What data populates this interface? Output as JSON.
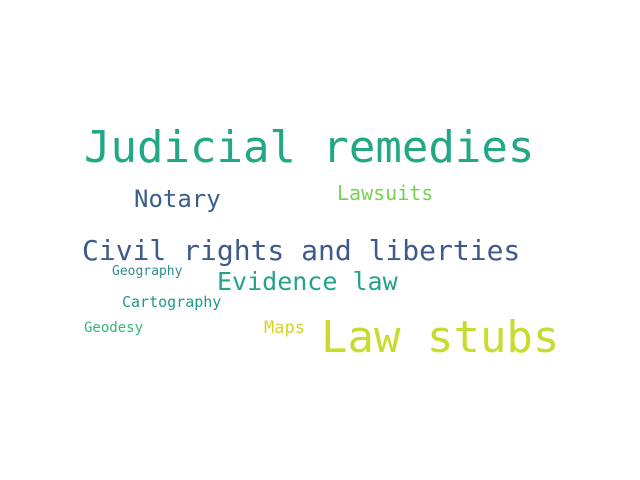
{
  "words": [
    {
      "text": "Judicial remedies",
      "color": "#22a884"
    },
    {
      "text": "Notary",
      "color": "#3b5e8c"
    },
    {
      "text": "Lawsuits",
      "color": "#7ad151"
    },
    {
      "text": "Civil rights and liberties",
      "color": "#3e5a8a"
    },
    {
      "text": "Geography",
      "color": "#2e8f8a"
    },
    {
      "text": "Evidence law",
      "color": "#25a28a"
    },
    {
      "text": "Cartography",
      "color": "#1f9a8a"
    },
    {
      "text": "Geodesy",
      "color": "#35b779"
    },
    {
      "text": "Maps",
      "color": "#d8d22a"
    },
    {
      "text": "Law stubs",
      "color": "#c8dc2e"
    }
  ]
}
